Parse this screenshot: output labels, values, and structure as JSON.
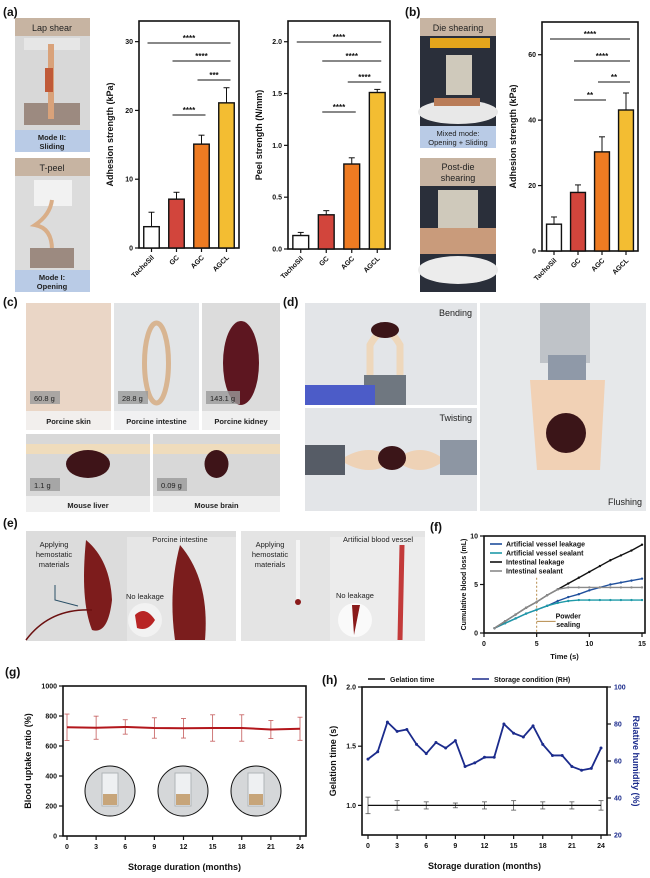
{
  "panels": {
    "a": {
      "label": "(a)",
      "photos": {
        "lap_shear_title": "Lap shear",
        "lap_shear_mode_1": "Mode II:",
        "lap_shear_mode_2": "Sliding",
        "tpeel_title": "T-peel",
        "tpeel_mode_1": "Mode I:",
        "tpeel_mode_2": "Opening"
      }
    },
    "b": {
      "label": "(b)",
      "photos": {
        "die_title": "Die shearing",
        "die_mode_1": "Mixed mode:",
        "die_mode_2": "Opening + Sliding",
        "post_title_1": "Post-die",
        "post_title_2": "shearing"
      }
    },
    "c": {
      "label": "(c)",
      "items": [
        {
          "weight": "60.8 g",
          "name": "Porcine skin"
        },
        {
          "weight": "28.8 g",
          "name": "Porcine intestine"
        },
        {
          "weight": "143.1 g",
          "name": "Porcine kidney"
        },
        {
          "weight": "1.1 g",
          "name": "Mouse liver"
        },
        {
          "weight": "0.09 g",
          "name": "Mouse brain"
        }
      ]
    },
    "d": {
      "label": "(d)",
      "bending": "Bending",
      "twisting": "Twisting",
      "flushing": "Flushing"
    },
    "e": {
      "label": "(e)",
      "applying_1": "Applying",
      "applying_2": "hemostatic",
      "applying_3": "materials",
      "porcine_intestine": "Porcine intestine",
      "artificial_vessel": "Artificial blood vessel",
      "no_leakage": "No leakage"
    },
    "f": {
      "label": "(f)",
      "annotation_1": "Powder",
      "annotation_2": "sealing"
    },
    "g": {
      "label": "(g)"
    },
    "h": {
      "label": "(h)"
    }
  },
  "colors": {
    "TachoSil": "#ffffff",
    "GC": "#d2453c",
    "AGC": "#ee7b22",
    "AGCL": "#f3bd32",
    "g_line": "#b3161b",
    "rh": "#1b2b8c",
    "av_leak": "#1f4f9c",
    "av_seal": "#1f9aa8",
    "int_leak": "#111111",
    "int_seal": "#8a8a8a"
  },
  "chart_data": [
    {
      "id": "a1",
      "type": "bar",
      "title": "",
      "xlabel": "",
      "ylabel": "Adhesion strength  (kPa)",
      "categories": [
        "TachoSil",
        "GC",
        "AGC",
        "AGCL"
      ],
      "values": [
        3.1,
        7.1,
        15.1,
        21.1
      ],
      "errors": [
        2.1,
        1.0,
        1.3,
        2.2
      ],
      "ylim": [
        0,
        33
      ],
      "yticks": [
        0,
        10,
        20,
        30
      ],
      "ytick_labels": [
        "0",
        "10",
        "20",
        "30"
      ],
      "significance": [
        {
          "from": "TachoSil",
          "to": "AGCL",
          "label": "****"
        },
        {
          "from": "GC",
          "to": "AGCL",
          "label": "****"
        },
        {
          "from": "AGC",
          "to": "AGCL",
          "label": "***"
        },
        {
          "from": "GC",
          "to": "AGC",
          "label": "****"
        }
      ]
    },
    {
      "id": "a2",
      "type": "bar",
      "title": "",
      "xlabel": "",
      "ylabel": "Peel strength  (N/mm)",
      "categories": [
        "TachoSil",
        "GC",
        "AGC",
        "AGCL"
      ],
      "values": [
        0.13,
        0.33,
        0.82,
        1.51
      ],
      "errors": [
        0.03,
        0.04,
        0.06,
        0.03
      ],
      "ylim": [
        0,
        2.2
      ],
      "yticks": [
        0,
        0.5,
        1.0,
        1.5,
        2.0
      ],
      "ytick_labels": [
        "0.0",
        "0.5",
        "1.0",
        "1.5",
        "2.0"
      ],
      "significance": [
        {
          "from": "TachoSil",
          "to": "AGCL",
          "label": "****"
        },
        {
          "from": "GC",
          "to": "AGCL",
          "label": "****"
        },
        {
          "from": "AGC",
          "to": "AGCL",
          "label": "****"
        },
        {
          "from": "GC",
          "to": "AGC",
          "label": "****"
        }
      ]
    },
    {
      "id": "b",
      "type": "bar",
      "title": "",
      "xlabel": "",
      "ylabel": "Adhesion strength  (kPa)",
      "categories": [
        "TachoSil",
        "GC",
        "AGC",
        "AGCL"
      ],
      "values": [
        8.2,
        17.9,
        30.3,
        43.1
      ],
      "errors": [
        2.2,
        2.3,
        4.6,
        5.2
      ],
      "ylim": [
        0,
        70
      ],
      "yticks": [
        0,
        20,
        40,
        60
      ],
      "ytick_labels": [
        "0",
        "20",
        "40",
        "60"
      ],
      "significance": [
        {
          "from": "TachoSil",
          "to": "AGCL",
          "label": "****"
        },
        {
          "from": "GC",
          "to": "AGCL",
          "label": "****"
        },
        {
          "from": "AGC",
          "to": "AGCL",
          "label": "**"
        },
        {
          "from": "GC",
          "to": "AGC",
          "label": "**"
        }
      ]
    },
    {
      "id": "f",
      "type": "line",
      "title": "",
      "xlabel": "Time (s)",
      "ylabel": "Cumulative blood loss (mL)",
      "xlim": [
        0,
        15
      ],
      "ylim": [
        0,
        10
      ],
      "xticks": [
        0,
        5,
        10,
        15
      ],
      "yticks": [
        0,
        5,
        10
      ],
      "xtick_labels": [
        "0",
        "5",
        "10",
        "15"
      ],
      "ytick_labels": [
        "0",
        "5",
        "10"
      ],
      "x": [
        1,
        2,
        3,
        4,
        5,
        6,
        7,
        8,
        9,
        10,
        11,
        12,
        13,
        14,
        15
      ],
      "legend_position": "top-left",
      "vline_x": 5,
      "series": [
        {
          "name": "Artificial vessel leakage",
          "color_key": "av_leak",
          "values": [
            0.5,
            1.0,
            1.5,
            2.0,
            2.4,
            2.8,
            3.3,
            3.7,
            4.0,
            4.4,
            4.7,
            5.0,
            5.2,
            5.4,
            5.6
          ]
        },
        {
          "name": "Artificial vessel sealant",
          "color_key": "av_seal",
          "values": [
            0.5,
            1.0,
            1.5,
            2.0,
            2.4,
            2.8,
            3.1,
            3.3,
            3.4,
            3.4,
            3.4,
            3.4,
            3.4,
            3.4,
            3.4
          ]
        },
        {
          "name": "Intestinal leakage",
          "color_key": "int_leak",
          "values": [
            0.5,
            1.2,
            1.9,
            2.6,
            3.2,
            3.9,
            4.5,
            5.1,
            5.7,
            6.3,
            6.9,
            7.5,
            8.0,
            8.5,
            9.1
          ]
        },
        {
          "name": "Intestinal sealant",
          "color_key": "int_seal",
          "values": [
            0.5,
            1.2,
            1.9,
            2.6,
            3.2,
            3.9,
            4.5,
            4.7,
            4.7,
            4.7,
            4.7,
            4.7,
            4.7,
            4.7,
            4.7
          ]
        }
      ]
    },
    {
      "id": "g",
      "type": "line",
      "title": "",
      "xlabel": "Storage duration  (months)",
      "ylabel": "Blood uptake ratio  (%)",
      "xlim": [
        0,
        24
      ],
      "ylim": [
        0,
        1000
      ],
      "xticks": [
        0,
        3,
        6,
        9,
        12,
        15,
        18,
        21,
        24
      ],
      "xtick_labels": [
        "0",
        "3",
        "6",
        "9",
        "12",
        "15",
        "18",
        "21",
        "24"
      ],
      "yticks": [
        0,
        200,
        400,
        600,
        800,
        1000
      ],
      "ytick_labels": [
        "0",
        "200",
        "400",
        "600",
        "800",
        "1000"
      ],
      "x": [
        0,
        3,
        6,
        9,
        12,
        15,
        18,
        21,
        24
      ],
      "series": [
        {
          "name": "Blood uptake ratio",
          "values": [
            725,
            722,
            727,
            720,
            718,
            720,
            720,
            710,
            715
          ],
          "errors": [
            88,
            77,
            48,
            68,
            65,
            88,
            88,
            60,
            77
          ]
        }
      ]
    },
    {
      "id": "h",
      "type": "line",
      "title": "",
      "xlabel": "Storage duration  (months)",
      "ylabel": "Gelation time (s)",
      "ylabel_right": "Relative humidity (%)",
      "xlim": [
        0,
        24
      ],
      "ylim": [
        0.75,
        2.0
      ],
      "ylim_right": [
        20,
        100
      ],
      "xticks": [
        0,
        3,
        6,
        9,
        12,
        15,
        18,
        21,
        24
      ],
      "xtick_labels": [
        "0",
        "3",
        "6",
        "9",
        "12",
        "15",
        "18",
        "21",
        "24"
      ],
      "yticks": [
        1.0,
        1.5,
        2.0
      ],
      "ytick_labels": [
        "1.0",
        "1.5",
        "2.0"
      ],
      "yticks_right": [
        20,
        40,
        60,
        80,
        100
      ],
      "ytick_labels_right": [
        "20",
        "40",
        "60",
        "80",
        "100"
      ],
      "legend_position": "top",
      "series": [
        {
          "name": "Gelation time",
          "axis": "left",
          "x": [
            0,
            3,
            6,
            9,
            12,
            15,
            18,
            21,
            24
          ],
          "values": [
            1.0,
            1.0,
            1.0,
            1.0,
            1.0,
            1.0,
            1.0,
            1.0,
            1.0
          ],
          "errors": [
            0.07,
            0.04,
            0.03,
            0.02,
            0.03,
            0.04,
            0.03,
            0.03,
            0.04
          ]
        },
        {
          "name": "Storage condition (RH)",
          "axis": "right",
          "x": [
            0,
            1,
            2,
            3,
            4,
            5,
            6,
            7,
            8,
            9,
            10,
            11,
            12,
            13,
            14,
            15,
            16,
            17,
            18,
            19,
            20,
            21,
            22,
            23,
            24
          ],
          "values": [
            61,
            65,
            81,
            76,
            77,
            69,
            64,
            70,
            67,
            71,
            57,
            59,
            62,
            62,
            80,
            75,
            73,
            79,
            69,
            63,
            63,
            57,
            55,
            56,
            67
          ]
        }
      ]
    }
  ]
}
